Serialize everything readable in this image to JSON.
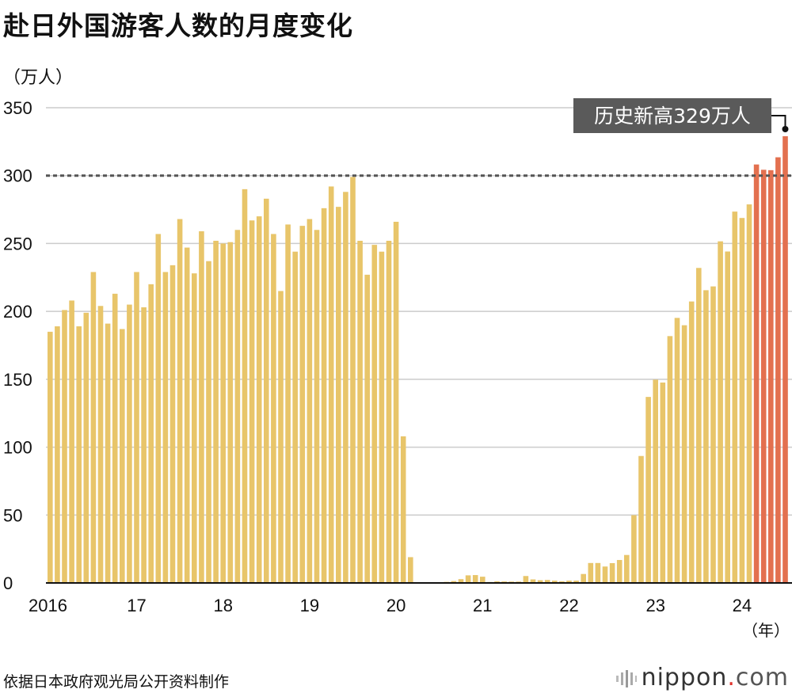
{
  "title": "赴日外国游客人数的月度变化",
  "unit_label": "（万人）",
  "year_suffix": "（年）",
  "source": "依据日本政府观光局公开资料制作",
  "brand": {
    "name": "nippon",
    "dot": ".",
    "tld": "com",
    "logo_icon": "nippon-bars-logo-icon"
  },
  "colors": {
    "normal": "#e8c56a",
    "record": "#e3704f",
    "grid": "#cccccc",
    "axis": "#111111",
    "reference": "#555555",
    "callout_bg": "#5a5a5a",
    "callout_text": "#ffffff"
  },
  "chart_data": {
    "type": "bar",
    "ylabel": "（万人）",
    "xlabel": "（年）",
    "ylim": [
      0,
      350
    ],
    "yticks": [
      0,
      50,
      100,
      150,
      200,
      250,
      300,
      350
    ],
    "grid": true,
    "reference_line": 300,
    "x_tick_labels": [
      {
        "label": "2016",
        "index": 0
      },
      {
        "label": "17",
        "index": 12
      },
      {
        "label": "18",
        "index": 24
      },
      {
        "label": "19",
        "index": 36
      },
      {
        "label": "20",
        "index": 48
      },
      {
        "label": "21",
        "index": 60
      },
      {
        "label": "22",
        "index": 72
      },
      {
        "label": "23",
        "index": 84
      },
      {
        "label": "24",
        "index": 96
      }
    ],
    "annotation": {
      "text": "历史新高329万人",
      "index": 102
    },
    "record_start_index": 98,
    "values": [
      185,
      189,
      201,
      208,
      189,
      199,
      229,
      204,
      191,
      213,
      187,
      205,
      229,
      203,
      220,
      257,
      229,
      234,
      268,
      247,
      228,
      259,
      237,
      252,
      250,
      251,
      260,
      290,
      267,
      270,
      283,
      257,
      215,
      264,
      244,
      263,
      268,
      260,
      276,
      292,
      277,
      288,
      299,
      252,
      227,
      249,
      244,
      252,
      266,
      108,
      19,
      0.3,
      0.2,
      0.3,
      0.4,
      0.8,
      1.4,
      2.8,
      5.6,
      5.8,
      4.6,
      0.7,
      1.2,
      1.1,
      1.0,
      1.0,
      5.1,
      2.6,
      2.0,
      2.2,
      1.7,
      1.2,
      1.7,
      1.7,
      6.6,
      14.7,
      14.7,
      12.1,
      14.6,
      16.9,
      20.6,
      49.9,
      93.5,
      137.0,
      149.7,
      147.6,
      181.8,
      195.2,
      189.8,
      207.3,
      232.0,
      215.6,
      218.4,
      251.6,
      244.1,
      273.5,
      268.8,
      278.8,
      308.2,
      304.3,
      304.0,
      313.5,
      329.0
    ]
  }
}
